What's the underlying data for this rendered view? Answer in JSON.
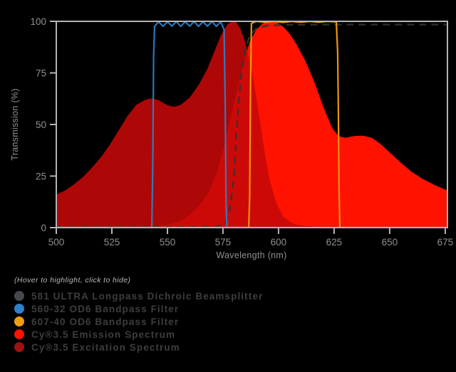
{
  "legend": {
    "note": "(Hover to highlight, click to hide)",
    "items": [
      {
        "id": "dichroic",
        "label": "581 ULTRA Longpass Dichroic Beamsplitter",
        "color": "#45494e"
      },
      {
        "id": "bandpass-560",
        "label": "560-32 OD6 Bandpass Filter",
        "color": "#2c82c9"
      },
      {
        "id": "bandpass-607",
        "label": "607-40 OD6 Bandpass Filter",
        "color": "#f39c12"
      },
      {
        "id": "emission",
        "label": "Cy®3.5 Emission Spectrum",
        "color": "#ff1200"
      },
      {
        "id": "excitation",
        "label": "Cy®3.5 Excitation Spectrum",
        "color": "#9c1212"
      }
    ]
  },
  "chart_data": {
    "type": "area",
    "title": "",
    "xlabel": "Wavelength (nm)",
    "ylabel": "Transmission (%)",
    "xlim": [
      500,
      676
    ],
    "ylim": [
      0,
      100
    ],
    "x_ticks": [
      500,
      525,
      550,
      575,
      600,
      625,
      650,
      675
    ],
    "y_ticks": [
      0,
      25,
      50,
      75,
      100
    ],
    "grid": false,
    "background": "#000000",
    "frame_color": "#b4b4b8",
    "tick_label_color": "#909095",
    "legend_position": "below-left",
    "series": [
      {
        "id": "emission-spectrum",
        "name": "Cy®3.5 Emission Spectrum",
        "type": "area",
        "color": "#ff1200",
        "opacity": 1,
        "points": [
          [
            540,
            0
          ],
          [
            548,
            1
          ],
          [
            554,
            2.5
          ],
          [
            558,
            4.5
          ],
          [
            562,
            8
          ],
          [
            566,
            13
          ],
          [
            569,
            18
          ],
          [
            572,
            26
          ],
          [
            575,
            37
          ],
          [
            578,
            51
          ],
          [
            581,
            65
          ],
          [
            584,
            79
          ],
          [
            587,
            90
          ],
          [
            590,
            96
          ],
          [
            593,
            99
          ],
          [
            596,
            100
          ],
          [
            599,
            99.5
          ],
          [
            602,
            97.5
          ],
          [
            605,
            94
          ],
          [
            608,
            89
          ],
          [
            612,
            81
          ],
          [
            616,
            71
          ],
          [
            620,
            59
          ],
          [
            624,
            48.5
          ],
          [
            627,
            44.3
          ],
          [
            630,
            43.6
          ],
          [
            634,
            44.4
          ],
          [
            638,
            44.6
          ],
          [
            642,
            43.5
          ],
          [
            646,
            40.5
          ],
          [
            650,
            36.5
          ],
          [
            655,
            31.5
          ],
          [
            660,
            27
          ],
          [
            665,
            23.5
          ],
          [
            670,
            20.8
          ],
          [
            676,
            18
          ]
        ]
      },
      {
        "id": "excitation-spectrum",
        "name": "Cy®3.5 Excitation Spectrum",
        "type": "area",
        "color": "#c60808",
        "opacity": 0.88,
        "points": [
          [
            500,
            16
          ],
          [
            504,
            18
          ],
          [
            508,
            21
          ],
          [
            512,
            24.5
          ],
          [
            516,
            29
          ],
          [
            520,
            34
          ],
          [
            524,
            40
          ],
          [
            528,
            47
          ],
          [
            532,
            54
          ],
          [
            536,
            59.5
          ],
          [
            540,
            62
          ],
          [
            543,
            62.7
          ],
          [
            546,
            61.8
          ],
          [
            550,
            59.3
          ],
          [
            553,
            58.6
          ],
          [
            556,
            59.5
          ],
          [
            560,
            63
          ],
          [
            564,
            69
          ],
          [
            568,
            77
          ],
          [
            571,
            85
          ],
          [
            574,
            93
          ],
          [
            577,
            98.5
          ],
          [
            579,
            100
          ],
          [
            581,
            99.5
          ],
          [
            583,
            96
          ],
          [
            585,
            90
          ],
          [
            588,
            76
          ],
          [
            590,
            63
          ],
          [
            592,
            49
          ],
          [
            594,
            35
          ],
          [
            596,
            23
          ],
          [
            599,
            12
          ],
          [
            602,
            5.5
          ],
          [
            606,
            2.2
          ],
          [
            610,
            1
          ],
          [
            616,
            0.5
          ],
          [
            624,
            0.3
          ],
          [
            640,
            0.2
          ],
          [
            676,
            0.1
          ]
        ]
      },
      {
        "id": "dichroic-581",
        "name": "581 ULTRA Longpass Dichroic Beamsplitter",
        "type": "line",
        "color": "#333333",
        "opacity": 0.9,
        "dash": "10 7",
        "width": 2.4,
        "points": [
          [
            500,
            0.3
          ],
          [
            560,
            0.3
          ],
          [
            572,
            0.5
          ],
          [
            576,
            2
          ],
          [
            578,
            8
          ],
          [
            580,
            25
          ],
          [
            581,
            45
          ],
          [
            582,
            60
          ],
          [
            583,
            72
          ],
          [
            585,
            86
          ],
          [
            587,
            93
          ],
          [
            590,
            96.5
          ],
          [
            595,
            98
          ],
          [
            605,
            98.3
          ],
          [
            620,
            98.4
          ],
          [
            640,
            98.4
          ],
          [
            660,
            98.4
          ],
          [
            676,
            98.5
          ]
        ]
      },
      {
        "id": "bandpass-560-32",
        "name": "560-32 OD6 Bandpass Filter",
        "type": "line",
        "color": "#2c82c9",
        "opacity": 0.92,
        "width": 2.2,
        "points": [
          [
            500,
            0
          ],
          [
            543,
            0
          ],
          [
            543.4,
            30
          ],
          [
            543.8,
            83
          ],
          [
            544.2,
            97.5
          ],
          [
            546,
            99.8
          ],
          [
            548,
            97.6
          ],
          [
            550,
            99.8
          ],
          [
            552,
            97.7
          ],
          [
            554,
            99.9
          ],
          [
            556,
            97.6
          ],
          [
            558,
            99.8
          ],
          [
            560,
            97.7
          ],
          [
            562,
            99.9
          ],
          [
            564,
            97.6
          ],
          [
            566,
            99.8
          ],
          [
            568,
            97.7
          ],
          [
            570,
            99.9
          ],
          [
            572,
            97.6
          ],
          [
            574,
            99.7
          ],
          [
            575.5,
            96
          ],
          [
            576,
            60
          ],
          [
            576.4,
            10
          ],
          [
            576.8,
            0
          ],
          [
            676,
            0
          ]
        ]
      },
      {
        "id": "bandpass-607-40",
        "name": "607-40 OD6 Bandpass Filter",
        "type": "line",
        "color": "#f0940f",
        "opacity": 1,
        "width": 2.2,
        "points": [
          [
            500,
            0
          ],
          [
            586.6,
            0
          ],
          [
            587,
            15
          ],
          [
            587.4,
            70
          ],
          [
            587.8,
            99
          ],
          [
            590,
            100
          ],
          [
            594,
            99.6
          ],
          [
            598,
            100
          ],
          [
            602,
            99.5
          ],
          [
            606,
            100
          ],
          [
            610,
            99.6
          ],
          [
            614,
            100
          ],
          [
            618,
            99.6
          ],
          [
            622,
            100
          ],
          [
            626,
            99.8
          ],
          [
            626.6,
            85
          ],
          [
            626.9,
            60
          ],
          [
            627.2,
            20
          ],
          [
            627.6,
            0
          ],
          [
            676,
            0
          ]
        ]
      }
    ]
  }
}
